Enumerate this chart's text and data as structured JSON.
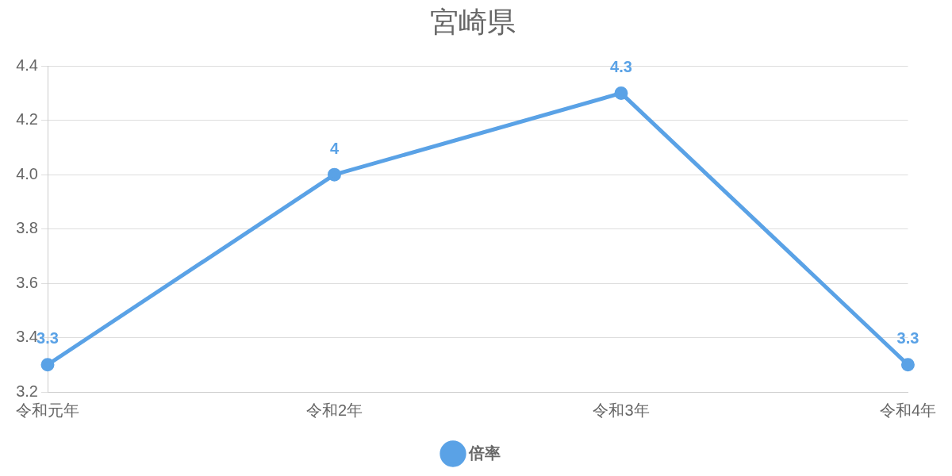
{
  "chart_data": {
    "type": "line",
    "title": "宮崎県",
    "categories": [
      "令和元年",
      "令和2年",
      "令和3年",
      "令和4年"
    ],
    "series": [
      {
        "name": "倍率",
        "color": "#5aa2e6",
        "values": [
          3.3,
          4,
          4.3,
          3.3
        ]
      }
    ],
    "ylim": [
      3.2,
      4.4
    ],
    "yticks": [
      3.2,
      3.4,
      3.6,
      3.8,
      {
        "value": 4,
        "label": "4.0"
      },
      4.2,
      4.4
    ],
    "grid": "y",
    "legend": "bottom",
    "marker": "circle",
    "data_labels": true
  }
}
